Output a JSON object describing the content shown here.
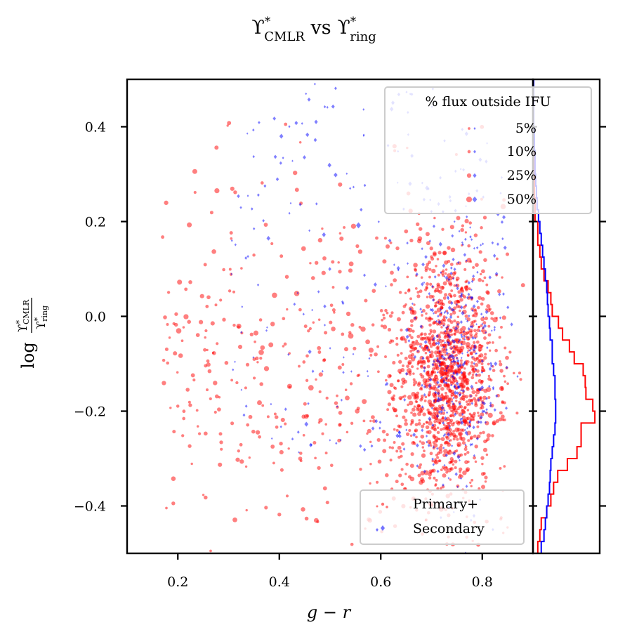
{
  "chart_data": {
    "type": "scatter",
    "title": {
      "symbol": "ϒ",
      "sup": "*",
      "sub1": "CMLR",
      "mid": " vs ",
      "sub2": "ring"
    },
    "xlabel": "g − r",
    "ylabel": {
      "prefix": "log",
      "num_sub": "CMLR",
      "den_sub": "ring",
      "symbol": "ϒ",
      "sup": "*"
    },
    "xlim": [
      0.1,
      0.9
    ],
    "ylim": [
      -0.5,
      0.5
    ],
    "xticks": [
      0.2,
      0.4,
      0.6,
      0.8
    ],
    "xtick_labels": [
      "0.2",
      "0.4",
      "0.6",
      "0.8"
    ],
    "yticks": [
      0.4,
      0.2,
      0.0,
      -0.2,
      -0.4
    ],
    "ytick_labels": [
      "0.4",
      "0.2",
      "0.0",
      "−0.2",
      "−0.4"
    ],
    "size_legend": {
      "title": "% flux outside IFU",
      "entries": [
        "5%",
        "10%",
        "25%",
        "50%"
      ],
      "fractions": [
        0.05,
        0.1,
        0.25,
        0.5
      ]
    },
    "series_legend": [
      {
        "name": "Primary+",
        "color": "#ff0000",
        "marker": "circle"
      },
      {
        "name": "Secondary",
        "color": "#0000ff",
        "marker": "diamond"
      }
    ],
    "series": [
      {
        "name": "Primary+",
        "color": "#ff0000",
        "marker": "circle",
        "points": [],
        "note": "points generated procedurally, approx. 1500"
      },
      {
        "name": "Secondary",
        "color": "#0000ff",
        "marker": "diamond",
        "points": [],
        "note": "points generated procedurally, approx. 500"
      }
    ],
    "marginal_histogram": {
      "orientation": "horizontal",
      "bin_edges": [
        -0.5,
        -0.475,
        -0.45,
        -0.425,
        -0.4,
        -0.375,
        -0.35,
        -0.325,
        -0.3,
        -0.275,
        -0.25,
        -0.225,
        -0.2,
        -0.175,
        -0.15,
        -0.125,
        -0.1,
        -0.075,
        -0.05,
        -0.025,
        0.0,
        0.025,
        0.05,
        0.075,
        0.1,
        0.125,
        0.15,
        0.175,
        0.2,
        0.225,
        0.25,
        0.275,
        0.3,
        0.325,
        0.35,
        0.375,
        0.4,
        0.425,
        0.45,
        0.475,
        0.5
      ],
      "primary": [
        7,
        10,
        12,
        20,
        26,
        30,
        36,
        50,
        64,
        70,
        70,
        90,
        87,
        77,
        76,
        73,
        60,
        53,
        43,
        37,
        28,
        26,
        22,
        16,
        12,
        10,
        7,
        7,
        3,
        3,
        2,
        2,
        2,
        2,
        2,
        1,
        1,
        1,
        1,
        0
      ],
      "secondary": [
        12,
        16,
        18,
        20,
        22,
        24,
        25,
        26,
        28,
        30,
        32,
        33,
        33,
        32,
        32,
        30,
        28,
        28,
        25,
        24,
        22,
        21,
        20,
        18,
        16,
        14,
        12,
        10,
        8,
        6,
        5,
        4,
        3,
        3,
        2,
        2,
        1,
        1,
        1,
        1
      ],
      "max": 95
    }
  }
}
